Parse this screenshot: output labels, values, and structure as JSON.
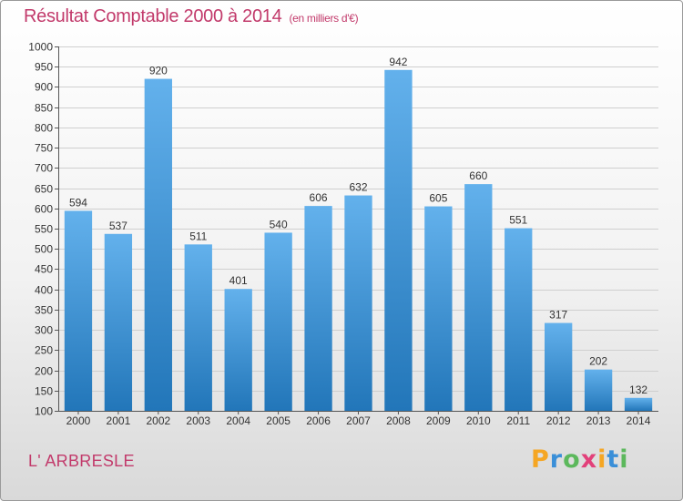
{
  "title": "Résultat Comptable 2000 à 2014",
  "subtitle": "(en milliers d'€)",
  "commune": "L' ARBRESLE",
  "brand": {
    "letters": [
      "P",
      "r",
      "o",
      "x",
      "i",
      "t",
      "i"
    ],
    "colors": [
      "#f5a623",
      "#3a8fd8",
      "#5cb85c",
      "#e2407a",
      "#f5a623",
      "#3a8fd8",
      "#5cb85c"
    ]
  },
  "colors": {
    "title": "#c23a6b",
    "bar_top": "#63b1ec",
    "bar_bottom": "#2276b9",
    "grid": "#cfcfcf"
  },
  "chart_data": {
    "type": "bar",
    "categories": [
      "2000",
      "2001",
      "2002",
      "2003",
      "2004",
      "2005",
      "2006",
      "2007",
      "2008",
      "2009",
      "2010",
      "2011",
      "2012",
      "2013",
      "2014"
    ],
    "values": [
      594,
      537,
      920,
      511,
      401,
      540,
      606,
      632,
      942,
      605,
      660,
      551,
      317,
      202,
      132
    ],
    "ylim": [
      100,
      1000
    ],
    "yticks": [
      100,
      150,
      200,
      250,
      300,
      350,
      400,
      450,
      500,
      550,
      600,
      650,
      700,
      750,
      800,
      850,
      900,
      950,
      1000
    ],
    "grid": true,
    "data_labels": true
  }
}
